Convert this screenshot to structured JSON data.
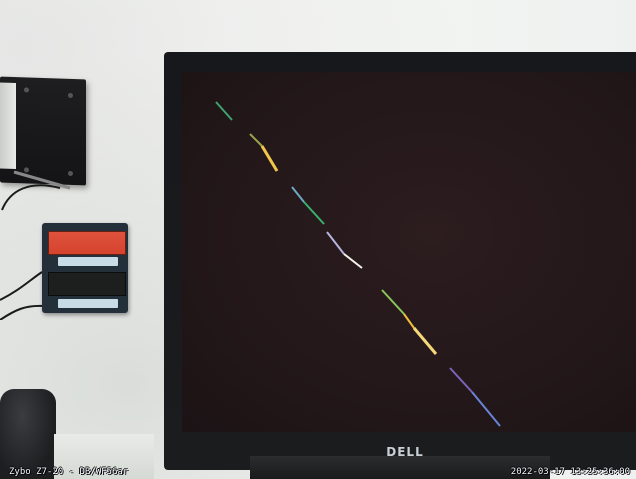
{
  "overlay": {
    "camera_label": "Zybo Z7-20 - DB/WF56ar",
    "timestamp": "2022-03-17 13:25:36:00"
  },
  "monitor": {
    "brand": "DELL",
    "screen_color": "#241819",
    "bezel_color": "#17191b"
  },
  "lcd": {
    "top_color": "#db4a34",
    "bottom_color": "#1c1f1e"
  },
  "colors": {
    "wall": "#f3f5f3",
    "overlay_text": "#f5f7ff"
  }
}
